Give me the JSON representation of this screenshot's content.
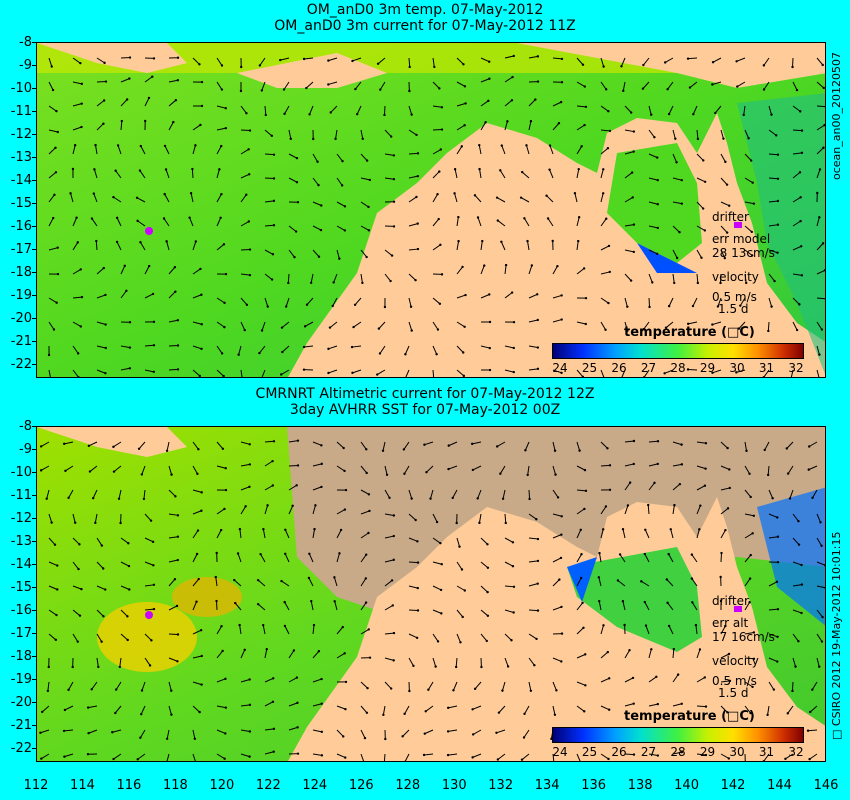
{
  "top_panel": {
    "title_line1": "OM_anD0 3m temp. 07-May-2012",
    "title_line2": "OM_anD0 3m current for 07-May-2012 11Z",
    "side_label": "ocean_an00_20120507",
    "legend": {
      "drifter": "drifter",
      "err": "err model",
      "err_value": "28 13cm/s",
      "velocity": "velocity",
      "speed": "0.5 m/s",
      "duration": "1.5 d"
    },
    "colorbar_title": "temperature (□C)"
  },
  "bottom_panel": {
    "title_line1": "CMRNRT Altimetric current for 07-May-2012 12Z",
    "title_line2": "3day AVHRR SST for 07-May-2012 00Z",
    "side_label": "□ CSIRO 2012 19-May-2012 10:01:15",
    "legend": {
      "drifter": "drifter",
      "err": "err alt",
      "err_value": "17 16cm/s",
      "velocity": "velocity",
      "speed": "0.5 m/s",
      "duration": "1.5 d"
    },
    "colorbar_title": "temperature (□C)"
  },
  "y_ticks": [
    "-8",
    "-9",
    "-10",
    "-11",
    "-12",
    "-13",
    "-14",
    "-15",
    "-16",
    "-17",
    "-18",
    "-19",
    "-20",
    "-21",
    "-22"
  ],
  "x_ticks": [
    "112",
    "114",
    "116",
    "118",
    "120",
    "122",
    "124",
    "126",
    "128",
    "130",
    "132",
    "134",
    "136",
    "138",
    "140",
    "142",
    "144",
    "146"
  ],
  "colorbar_ticks": [
    "24",
    "25",
    "26",
    "27",
    "28",
    "29",
    "30",
    "31",
    "32"
  ],
  "colors": {
    "background": "#00ffff",
    "land": "#ffcc99",
    "no_data": "#c8aa88",
    "drifter": "#cc00ff"
  }
}
